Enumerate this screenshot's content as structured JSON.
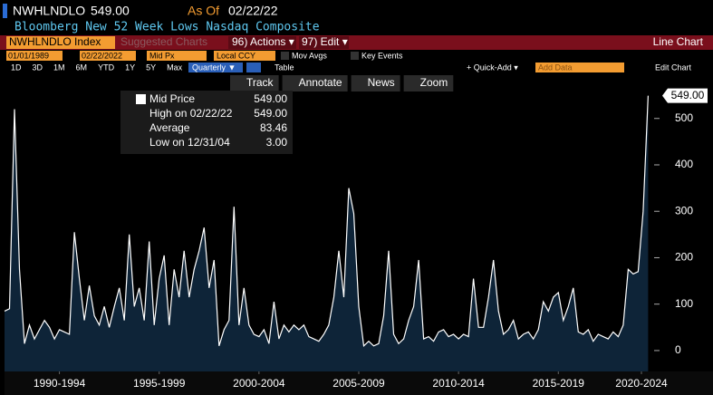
{
  "header": {
    "ticker": "NWHLNDLO",
    "price": "549.00",
    "as_of_label": "As Of",
    "as_of_date": "02/22/22",
    "subtitle": "Bloomberg New 52 Week Lows Nasdaq Composite"
  },
  "menu": {
    "security": "NWHLNDLO Index",
    "suggested": "Suggested Charts",
    "actions": "96) Actions ▾",
    "edit": "97) Edit ▾",
    "chart_kind": "Line Chart"
  },
  "settings": {
    "start": "01/01/1989",
    "end": "02/22/2022",
    "field": "Mid Px",
    "currency": "Local CCY",
    "mov_avgs": "Mov Avgs",
    "key_events": "Key Events"
  },
  "periods": [
    "1D",
    "3D",
    "1M",
    "6M",
    "YTD",
    "1Y",
    "5Y",
    "Max"
  ],
  "frequency": "Quarterly ▼",
  "table": "Table",
  "quick_add": "+ Quick-Add ▾",
  "add_data": "Add Data",
  "edit_chart": "Edit Chart",
  "tools": [
    "Track",
    "Annotate",
    "News",
    "Zoom"
  ],
  "legend": {
    "rows": [
      [
        "Mid Price",
        "549.00"
      ],
      [
        "High on 02/22/22",
        "549.00"
      ],
      [
        "Average",
        "83.46"
      ],
      [
        "Low on 12/31/04",
        "3.00"
      ]
    ]
  },
  "chart_data": {
    "type": "line",
    "color": "#ffffff",
    "x": [
      1989.75,
      1990,
      1990.25,
      1990.5,
      1990.75,
      1991,
      1991.25,
      1991.5,
      1991.75,
      1992,
      1992.25,
      1992.5,
      1992.75,
      1993,
      1993.25,
      1993.5,
      1993.75,
      1994,
      1994.25,
      1994.5,
      1994.75,
      1995,
      1995.25,
      1995.5,
      1995.75,
      1996,
      1996.25,
      1996.5,
      1996.75,
      1997,
      1997.25,
      1997.5,
      1997.75,
      1998,
      1998.25,
      1998.5,
      1998.75,
      1999,
      1999.25,
      1999.5,
      1999.75,
      2000,
      2000.25,
      2000.5,
      2000.75,
      2001,
      2001.25,
      2001.5,
      2001.75,
      2002,
      2002.25,
      2002.5,
      2002.75,
      2003,
      2003.25,
      2003.5,
      2003.75,
      2004,
      2004.25,
      2004.5,
      2004.75,
      2005,
      2005.25,
      2005.5,
      2005.75,
      2006,
      2006.25,
      2006.5,
      2006.75,
      2007,
      2007.25,
      2007.5,
      2007.75,
      2008,
      2008.25,
      2008.5,
      2008.75,
      2009,
      2009.25,
      2009.5,
      2009.75,
      2010,
      2010.25,
      2010.5,
      2010.75,
      2011,
      2011.25,
      2011.5,
      2011.75,
      2012,
      2012.25,
      2012.5,
      2012.75,
      2013,
      2013.25,
      2013.5,
      2013.75,
      2014,
      2014.25,
      2014.5,
      2014.75,
      2015,
      2015.25,
      2015.5,
      2015.75,
      2016,
      2016.25,
      2016.5,
      2016.75,
      2017,
      2017.25,
      2017.5,
      2017.75,
      2018,
      2018.25,
      2018.5,
      2018.75,
      2019,
      2019.25,
      2019.5,
      2019.75,
      2020,
      2020.25,
      2020.5,
      2020.75,
      2021,
      2021.25,
      2021.5,
      2021.75,
      2022
    ],
    "values": [
      85,
      90,
      520,
      175,
      15,
      55,
      25,
      45,
      65,
      50,
      25,
      45,
      40,
      35,
      255,
      155,
      65,
      140,
      75,
      55,
      95,
      50,
      95,
      135,
      65,
      250,
      95,
      135,
      65,
      235,
      55,
      155,
      205,
      55,
      175,
      115,
      215,
      115,
      175,
      215,
      265,
      135,
      195,
      10,
      45,
      65,
      310,
      55,
      135,
      55,
      35,
      30,
      45,
      15,
      105,
      25,
      55,
      40,
      55,
      45,
      55,
      30,
      25,
      20,
      35,
      55,
      115,
      215,
      115,
      350,
      295,
      95,
      10,
      20,
      10,
      15,
      75,
      215,
      35,
      15,
      25,
      65,
      95,
      195,
      25,
      30,
      20,
      40,
      45,
      30,
      35,
      25,
      35,
      30,
      155,
      50,
      50,
      115,
      195,
      85,
      35,
      45,
      65,
      25,
      35,
      40,
      25,
      45,
      105,
      85,
      115,
      125,
      65,
      95,
      135,
      40,
      35,
      45,
      20,
      35,
      30,
      25,
      40,
      30,
      55,
      175,
      165,
      170,
      300,
      549
    ],
    "last_value_label": "549.00",
    "xlim": [
      1989.75,
      2022.3
    ],
    "xticks": [
      {
        "value": 1992.5,
        "label": "1990-1994"
      },
      {
        "value": 1997.5,
        "label": "1995-1999"
      },
      {
        "value": 2002.5,
        "label": "2000-2004"
      },
      {
        "value": 2007.5,
        "label": "2005-2009"
      },
      {
        "value": 2012.5,
        "label": "2010-2014"
      },
      {
        "value": 2017.5,
        "label": "2015-2019"
      },
      {
        "value": 2022.5,
        "label": "2020-2024"
      }
    ],
    "ylim": [
      -45,
      560
    ],
    "yticks": [
      0,
      100,
      200,
      300,
      400,
      500
    ]
  }
}
